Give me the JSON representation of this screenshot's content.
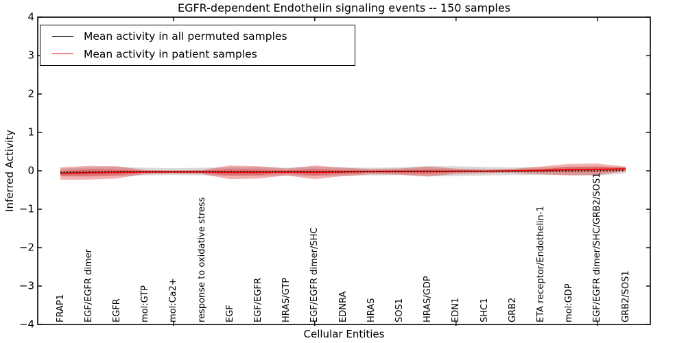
{
  "chart_data": {
    "type": "line",
    "title": "EGFR-dependent Endothelin signaling events -- 150 samples",
    "xlabel": "Cellular Entities",
    "ylabel": "Inferred Activity",
    "ylim": [
      -4,
      4
    ],
    "yticks": [
      4,
      3,
      2,
      1,
      0,
      -1,
      -2,
      -3,
      -4
    ],
    "x_major_tick_indices": [
      4,
      9,
      14,
      19
    ],
    "grid": false,
    "legend_position": "upper left",
    "categories": [
      "FRAP1",
      "EGF/EGFR dimer",
      "EGFR",
      "mol:GTP",
      "mol:Ca2+",
      "response to oxidative stress",
      "EGF",
      "EGF/EGFR",
      "HRAS/GTP",
      "EGF/EGFR dimer/SHC",
      "EDNRA",
      "HRAS",
      "SOS1",
      "HRAS/GDP",
      "EDN1",
      "SHC1",
      "GRB2",
      "ETA receptor/Endothelin-1",
      "mol:GDP",
      "EGF/EGFR dimer/SHC/GRB2/SOS1",
      "GRB2/SOS1"
    ],
    "series": [
      {
        "name": "Mean activity in all permuted samples",
        "color": "#000000",
        "line_style": "dotted",
        "values": [
          -0.04,
          -0.03,
          -0.02,
          -0.02,
          -0.02,
          -0.02,
          -0.02,
          -0.02,
          -0.02,
          -0.02,
          -0.02,
          -0.02,
          -0.01,
          -0.01,
          -0.01,
          -0.01,
          -0.01,
          -0.01,
          0,
          0,
          0.01
        ]
      },
      {
        "name": "Mean activity in patient samples",
        "color": "#ee0000",
        "line_style": "solid",
        "values": [
          -0.07,
          -0.05,
          -0.04,
          -0.03,
          -0.03,
          -0.03,
          -0.04,
          -0.04,
          -0.03,
          -0.04,
          -0.03,
          -0.02,
          -0.02,
          -0.02,
          -0.01,
          -0.01,
          0,
          0.01,
          0.03,
          0.04,
          0.05
        ]
      }
    ],
    "bands": [
      {
        "name": "permuted-samples-std",
        "color": "#808080",
        "opacity": 0.3,
        "center_series": 0,
        "half_widths": [
          0.1,
          0.12,
          0.12,
          0.1,
          0.09,
          0.1,
          0.11,
          0.12,
          0.1,
          0.12,
          0.11,
          0.1,
          0.1,
          0.13,
          0.13,
          0.11,
          0.1,
          0.1,
          0.11,
          0.12,
          0.08
        ]
      },
      {
        "name": "patient-samples-std",
        "color": "#dd2020",
        "opacity": 0.35,
        "center_series": 1,
        "half_widths": [
          0.16,
          0.18,
          0.16,
          0.05,
          0.04,
          0.05,
          0.18,
          0.16,
          0.09,
          0.18,
          0.11,
          0.07,
          0.08,
          0.13,
          0.07,
          0.05,
          0.05,
          0.1,
          0.15,
          0.15,
          0.06
        ]
      },
      {
        "name": "patient-samples-stderr",
        "color": "#dd2020",
        "opacity": 0.33,
        "center_series": 1,
        "half_widths": [
          0.07,
          0.09,
          0.07,
          0.03,
          0.02,
          0.03,
          0.08,
          0.07,
          0.04,
          0.08,
          0.05,
          0.03,
          0.04,
          0.06,
          0.03,
          0.02,
          0.02,
          0.04,
          0.07,
          0.07,
          0.03
        ]
      }
    ]
  }
}
